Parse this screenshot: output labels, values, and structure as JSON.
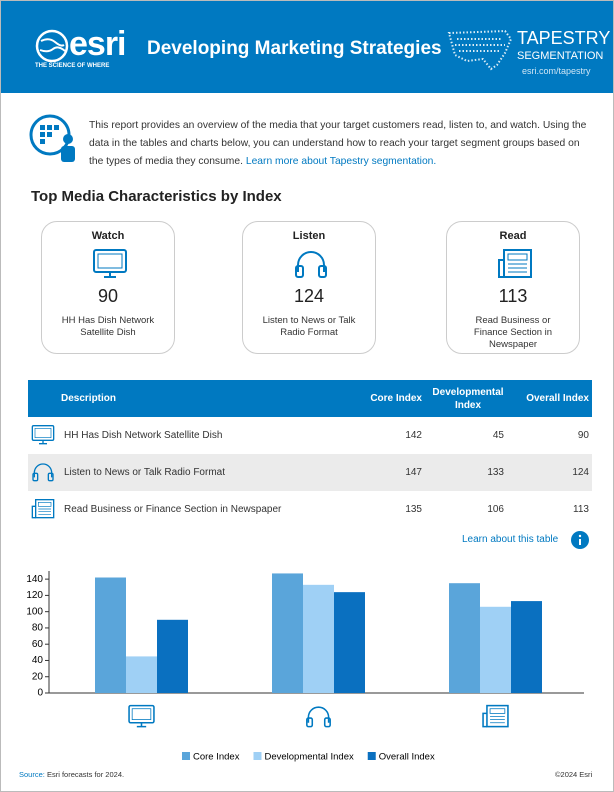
{
  "header": {
    "logo_text": "esri",
    "logo_tagline": "THE SCIENCE OF WHERE",
    "title": "Developing Marketing Strategies",
    "brand_line1": "TAPESTRY",
    "brand_line2": "SEGMENTATION",
    "brand_url": "esri.com/tapestry"
  },
  "intro": {
    "text": "This report provides an overview of the media that your target customers read, listen to, and watch. Using the data in the tables and charts below, you can understand how to reach your target segment groups based on the types of media they consume.",
    "link": "Learn more about Tapestry segmentation."
  },
  "section_title": "Top Media Characteristics by Index",
  "cards": [
    {
      "label": "Watch",
      "value": 90,
      "description": "HH Has Dish Network Satellite Dish"
    },
    {
      "label": "Listen",
      "value": 124,
      "description": "Listen to News or Talk Radio Format"
    },
    {
      "label": "Read",
      "value": 113,
      "description": "Read Business or Finance Section in Newspaper"
    }
  ],
  "table": {
    "columns": [
      "Description",
      "Core Index",
      "Developmental Index",
      "Overall Index"
    ],
    "rows": [
      [
        "HH Has Dish Network Satellite Dish",
        142,
        45,
        90
      ],
      [
        "Listen to News or Talk Radio Format",
        147,
        133,
        124
      ],
      [
        "Read Business or Finance Section in Newspaper",
        135,
        106,
        113
      ]
    ]
  },
  "table_link": "Learn about this table",
  "chart_data": {
    "type": "bar",
    "categories": [
      null,
      null,
      null
    ],
    "series": [
      {
        "name": "Core Index",
        "color": "#5aa5da",
        "values": [
          142,
          147,
          135
        ]
      },
      {
        "name": "Developmental Index",
        "color": "#9fd0f5",
        "values": [
          45,
          133,
          106
        ]
      },
      {
        "name": "Overall Index",
        "color": "#0a70c0",
        "values": [
          90,
          124,
          113
        ]
      }
    ],
    "ylim": [
      0,
      150
    ],
    "yticks": [
      0,
      20,
      40,
      60,
      80,
      100,
      120,
      140
    ]
  },
  "footer": {
    "source_label": "Source:",
    "source_text": "Esri forecasts for 2024.",
    "copyright": "©2024 Esri"
  }
}
